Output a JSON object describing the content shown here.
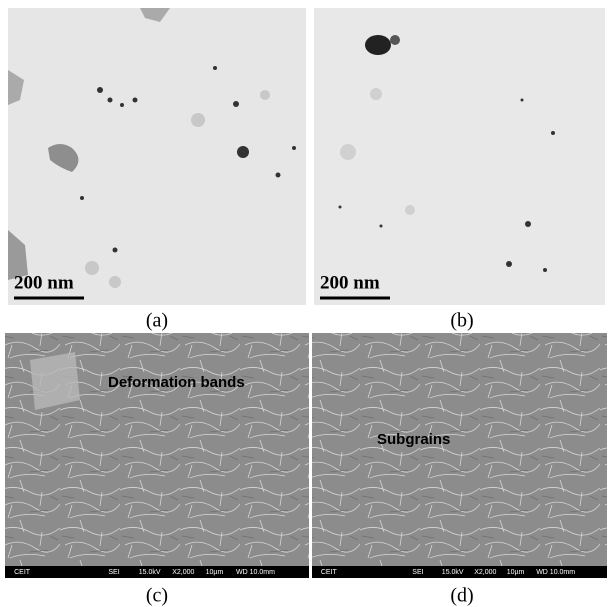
{
  "panels": [
    {
      "label": "(a)",
      "scale_bar": "200 nm"
    },
    {
      "label": "(b)",
      "scale_bar": "200 nm"
    },
    {
      "label": "(c)",
      "annotation": "Deformation bands",
      "info_bar": [
        "CEIT",
        "SEI",
        "15.0kV",
        "X2,000",
        "10µm",
        "WD 10.0mm"
      ]
    },
    {
      "label": "(d)",
      "annotation": "Subgrains",
      "info_bar": [
        "CEIT",
        "SEI",
        "15.0kV",
        "X2,000",
        "10µm",
        "WD 10.0mm"
      ]
    }
  ]
}
